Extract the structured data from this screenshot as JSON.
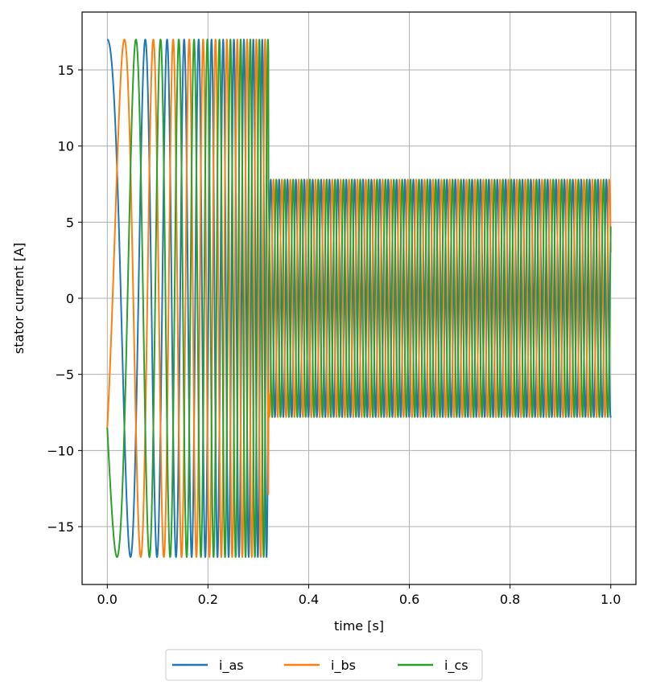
{
  "chart_data": {
    "type": "line",
    "title": "",
    "xlabel": "time [s]",
    "ylabel": "stator current [A]",
    "xlim": [
      -0.05,
      1.05
    ],
    "ylim": [
      -18.8,
      18.8
    ],
    "xticks": [
      0.0,
      0.2,
      0.4,
      0.6,
      0.8,
      1.0
    ],
    "xtick_labels": [
      "0.0",
      "0.2",
      "0.4",
      "0.6",
      "0.8",
      "1.0"
    ],
    "yticks": [
      15,
      10,
      5,
      0,
      -5,
      -10,
      -15
    ],
    "ytick_labels": [
      "15",
      "10",
      "5",
      "0",
      "−5",
      "−10",
      "−15"
    ],
    "grid": true,
    "legend_position": "bottom-center (below plot)",
    "series": [
      {
        "name": "i_as",
        "color": "#1f77b4",
        "phase_deg": 0,
        "segments": [
          {
            "t_start": 0.0,
            "t_end": 0.32,
            "amplitude": 17.0,
            "frequency": "increasing from ~7 Hz to ~60 Hz"
          },
          {
            "t_start": 0.32,
            "t_end": 1.0,
            "amplitude": 7.8,
            "frequency_hz": 60
          }
        ]
      },
      {
        "name": "i_bs",
        "color": "#ff7f0e",
        "phase_deg": -120,
        "segments": [
          {
            "t_start": 0.0,
            "t_end": 0.32,
            "amplitude": 17.0,
            "frequency": "increasing from ~7 Hz to ~60 Hz"
          },
          {
            "t_start": 0.32,
            "t_end": 1.0,
            "amplitude": 7.8,
            "frequency_hz": 60
          }
        ]
      },
      {
        "name": "i_cs",
        "color": "#2ca02c",
        "phase_deg": 120,
        "segments": [
          {
            "t_start": 0.0,
            "t_end": 0.32,
            "amplitude": 17.0,
            "frequency": "increasing from ~7 Hz to ~60 Hz"
          },
          {
            "t_start": 0.32,
            "t_end": 1.0,
            "amplitude": 7.8,
            "frequency_hz": 60
          }
        ]
      }
    ],
    "legend": [
      "i_as",
      "i_bs",
      "i_cs"
    ]
  }
}
